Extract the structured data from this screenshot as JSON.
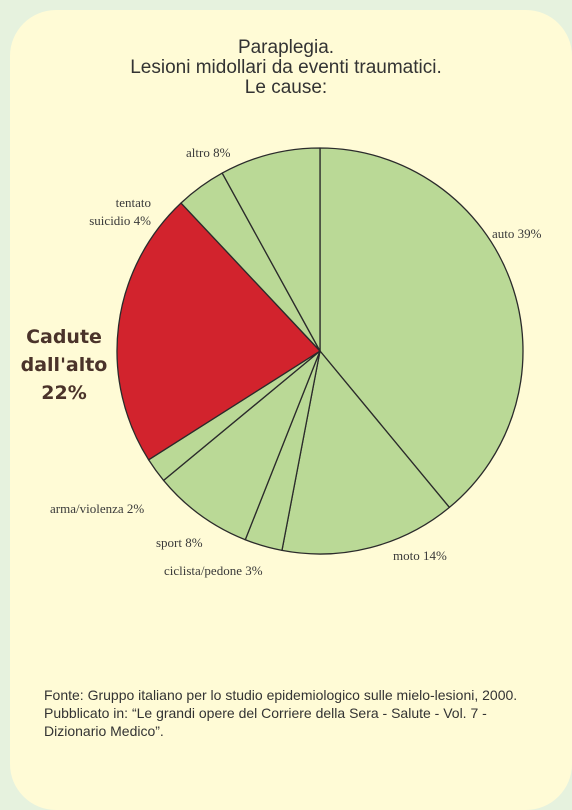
{
  "title_lines": [
    "Paraplegia.",
    "Lesioni midollari da eventi traumatici.",
    "Le cause:"
  ],
  "chart_data": {
    "type": "pie",
    "start_angle_deg": 0,
    "direction": "clockwise",
    "slices": [
      {
        "label": "auto 39%",
        "value": 39,
        "color": "#bad996"
      },
      {
        "label": "moto 14%",
        "value": 14,
        "color": "#bad996"
      },
      {
        "label": "ciclista/pedone 3%",
        "value": 3,
        "color": "#bad996"
      },
      {
        "label": "sport 8%",
        "value": 8,
        "color": "#bad996"
      },
      {
        "label": "arma/violenza 2%",
        "value": 2,
        "color": "#bad996"
      },
      {
        "label": "Cadute dall'alto 22%",
        "value": 22,
        "color": "#d2232d",
        "emphasis": true
      },
      {
        "label": "tentato suicidio 4%",
        "value": 4,
        "color": "#bad996"
      },
      {
        "label": "altro 8%",
        "value": 8,
        "color": "#bad996"
      }
    ]
  },
  "labels": {
    "auto": "auto 39%",
    "moto": "moto 14%",
    "ciclista": "ciclista/pedone 3%",
    "sport": "sport 8%",
    "arma": "arma/violenza 2%",
    "cadute_1": "Cadute",
    "cadute_2": "dall'alto",
    "cadute_3": "22%",
    "tentato_1": "tentato",
    "tentato_2": "suicidio 4%",
    "altro": "altro 8%"
  },
  "source_text": "Fonte: Gruppo italiano per lo studio epidemiologico sulle mielo-lesioni, 2000. Pubblicato in: “Le grandi opere del Corriere della Sera - Salute - Vol. 7 - Dizionario Medico”.",
  "colors": {
    "background": "#e6f2de",
    "card": "#fffbd6",
    "slice_green": "#bad996",
    "slice_red": "#d2232d",
    "stroke": "#2b2b2b"
  }
}
